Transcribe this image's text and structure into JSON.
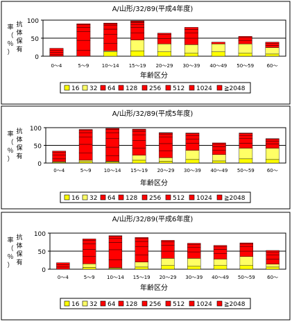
{
  "legend": {
    "items": [
      {
        "label": "16",
        "color": "#ffff00"
      },
      {
        "label": "32",
        "color": "#ffff66"
      },
      {
        "label": "64",
        "color": "#ff0000"
      },
      {
        "label": "128",
        "color": "#ff0000"
      },
      {
        "label": "256",
        "color": "#ff0000"
      },
      {
        "label": "512",
        "color": "#ff0000"
      },
      {
        "label": "1024",
        "color": "#ff0000"
      },
      {
        "label": "≧2048",
        "color": "#ff0000"
      }
    ]
  },
  "y_axis_label_chars": [
    "抗",
    "体",
    "保",
    "有",
    "率",
    "（",
    "％",
    "）"
  ],
  "chart_data": [
    {
      "type": "bar",
      "stacked": true,
      "title": "A/山形/32/89(平成4年度)",
      "xlabel": "年齢区分",
      "ylabel": "抗体保有率（％）",
      "ylim": [
        0,
        100
      ],
      "yticks": [
        0,
        50,
        100
      ],
      "reference_line": 50,
      "categories": [
        "0～4",
        "5～9",
        "10～14",
        "15～19",
        "20～29",
        "30～39",
        "40～49",
        "50～59",
        "60～"
      ],
      "series": [
        {
          "name": "16",
          "values": [
            0,
            0,
            12,
            15,
            12,
            8,
            12,
            8,
            6
          ]
        },
        {
          "name": "32",
          "values": [
            0,
            0,
            3,
            30,
            22,
            24,
            22,
            26,
            18
          ]
        },
        {
          "name": "64",
          "values": [
            4,
            16,
            20,
            20,
            15,
            18,
            5,
            10,
            6
          ]
        },
        {
          "name": "128",
          "values": [
            6,
            28,
            25,
            15,
            12,
            14,
            0,
            8,
            6
          ]
        },
        {
          "name": "256",
          "values": [
            6,
            24,
            15,
            8,
            3,
            10,
            0,
            3,
            3
          ]
        },
        {
          "name": "512",
          "values": [
            6,
            12,
            10,
            5,
            0,
            6,
            0,
            0,
            0
          ]
        },
        {
          "name": "1024",
          "values": [
            0,
            8,
            5,
            3,
            0,
            0,
            0,
            0,
            0
          ]
        },
        {
          "name": "≧2048",
          "values": [
            0,
            2,
            2,
            2,
            0,
            0,
            0,
            0,
            0
          ]
        }
      ]
    },
    {
      "type": "bar",
      "stacked": true,
      "title": "A/山形/32/89(平成5年度)",
      "xlabel": "年齢区分",
      "ylabel": "抗体保有率（％）",
      "ylim": [
        0,
        100
      ],
      "yticks": [
        0,
        50,
        100
      ],
      "reference_line": 50,
      "categories": [
        "0～4",
        "5～9",
        "10～14",
        "15～19",
        "20～29",
        "30～39",
        "40～49",
        "50～59",
        "60～"
      ],
      "series": [
        {
          "name": "16",
          "values": [
            2,
            4,
            3,
            8,
            5,
            10,
            6,
            12,
            10
          ]
        },
        {
          "name": "32",
          "values": [
            2,
            4,
            2,
            14,
            10,
            26,
            18,
            30,
            32
          ]
        },
        {
          "name": "64",
          "values": [
            8,
            20,
            15,
            20,
            20,
            20,
            12,
            14,
            12
          ]
        },
        {
          "name": "128",
          "values": [
            10,
            25,
            25,
            22,
            20,
            12,
            10,
            14,
            8
          ]
        },
        {
          "name": "256",
          "values": [
            8,
            20,
            25,
            15,
            18,
            10,
            8,
            8,
            5
          ]
        },
        {
          "name": "512",
          "values": [
            4,
            12,
            15,
            10,
            8,
            5,
            3,
            5,
            2
          ]
        },
        {
          "name": "1024",
          "values": [
            0,
            8,
            10,
            5,
            4,
            2,
            0,
            2,
            0
          ]
        },
        {
          "name": "≧2048",
          "values": [
            0,
            2,
            3,
            2,
            1,
            0,
            0,
            0,
            0
          ]
        }
      ]
    },
    {
      "type": "bar",
      "stacked": true,
      "title": "A/山形/32/89(平成6年度)",
      "xlabel": "年齢区分",
      "ylabel": "抗体保有率（％）",
      "ylim": [
        0,
        100
      ],
      "yticks": [
        0,
        50,
        100
      ],
      "reference_line": 50,
      "categories": [
        "0～4",
        "5～9",
        "10～14",
        "15～19",
        "20～29",
        "30～39",
        "40～49",
        "50～59",
        "60～"
      ],
      "series": [
        {
          "name": "16",
          "values": [
            0,
            5,
            2,
            6,
            10,
            8,
            10,
            10,
            6
          ]
        },
        {
          "name": "32",
          "values": [
            0,
            10,
            2,
            14,
            20,
            22,
            18,
            25,
            8
          ]
        },
        {
          "name": "64",
          "values": [
            6,
            20,
            22,
            20,
            20,
            18,
            15,
            15,
            14
          ]
        },
        {
          "name": "128",
          "values": [
            6,
            20,
            28,
            22,
            16,
            12,
            12,
            12,
            12
          ]
        },
        {
          "name": "256",
          "values": [
            6,
            15,
            20,
            15,
            10,
            8,
            8,
            8,
            8
          ]
        },
        {
          "name": "512",
          "values": [
            0,
            10,
            12,
            8,
            4,
            4,
            3,
            3,
            4
          ]
        },
        {
          "name": "1024",
          "values": [
            0,
            4,
            5,
            3,
            0,
            0,
            0,
            0,
            0
          ]
        },
        {
          "name": "≧2048",
          "values": [
            0,
            0,
            2,
            0,
            0,
            0,
            0,
            0,
            0
          ]
        }
      ]
    }
  ]
}
